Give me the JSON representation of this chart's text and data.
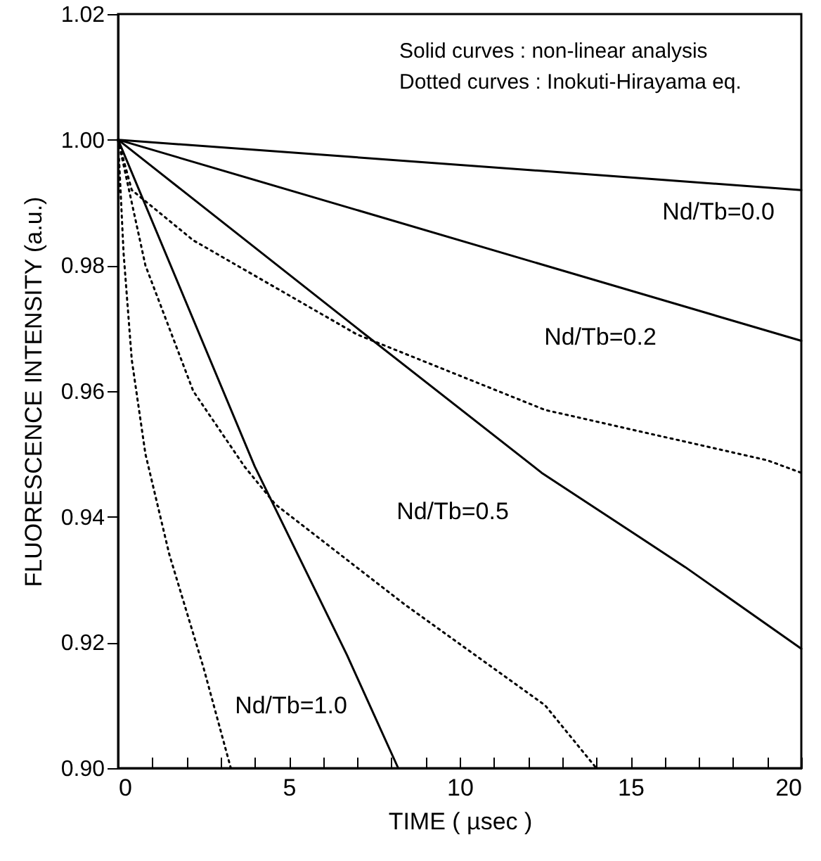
{
  "chart_data": {
    "type": "line",
    "xlabel": "TIME  ( µsec )",
    "ylabel": "FLUORESCENCE  INTENSITY  (a.u.)",
    "xlim": [
      0,
      20
    ],
    "ylim": [
      0.9,
      1.02
    ],
    "xticks": [
      0,
      {
        "value": 1,
        "label": null
      },
      {
        "value": 2,
        "label": null
      },
      {
        "value": 3,
        "label": null
      },
      {
        "value": 4,
        "label": null
      },
      5,
      {
        "value": 6,
        "label": null
      },
      {
        "value": 7,
        "label": null
      },
      {
        "value": 8,
        "label": null
      },
      {
        "value": 9,
        "label": null
      },
      10,
      {
        "value": 11,
        "label": null
      },
      {
        "value": 12,
        "label": null
      },
      {
        "value": 13,
        "label": null
      },
      {
        "value": 14,
        "label": null
      },
      15,
      {
        "value": 16,
        "label": null
      },
      {
        "value": 17,
        "label": null
      },
      {
        "value": 18,
        "label": null
      },
      {
        "value": 19,
        "label": null
      },
      20
    ],
    "yticks": [
      {
        "value": 0.9,
        "label": "0.90"
      },
      {
        "value": 0.92,
        "label": "0.92"
      },
      {
        "value": 0.94,
        "label": "0.94"
      },
      {
        "value": 0.96,
        "label": "0.96"
      },
      {
        "value": 0.98,
        "label": "0.98"
      },
      {
        "value": 1.0,
        "label": "1.00"
      },
      {
        "value": 1.02,
        "label": "1.02"
      }
    ],
    "grid": false,
    "marker": "none",
    "series": [
      {
        "color": "#000000",
        "line_style": "solid",
        "x": [
          0,
          20
        ],
        "values": [
          1.0,
          0.992
        ]
      },
      {
        "color": "#000000",
        "line_style": "solid",
        "x": [
          0,
          20
        ],
        "values": [
          1.0,
          0.968
        ]
      },
      {
        "color": "#000000",
        "line_style": "solid",
        "x": [
          0,
          7,
          12.4,
          16.6,
          20
        ],
        "values": [
          1.0,
          0.97,
          0.947,
          0.932,
          0.919
        ]
      },
      {
        "color": "#000000",
        "line_style": "solid",
        "x": [
          0,
          4.0,
          6.7,
          8.2
        ],
        "values": [
          1.0,
          0.948,
          0.918,
          0.9
        ]
      },
      {
        "color": "#000000",
        "line_style": "dotted",
        "x": [
          0,
          0.4,
          2.2,
          7.0,
          12.5,
          19.0,
          20
        ],
        "values": [
          1.0,
          0.992,
          0.984,
          0.969,
          0.957,
          0.949,
          0.947
        ]
      },
      {
        "color": "#000000",
        "line_style": "dotted",
        "x": [
          0,
          0.8,
          2.2,
          3.7,
          4.6,
          8.4,
          12.5,
          14.0
        ],
        "values": [
          1.0,
          0.98,
          0.96,
          0.948,
          0.942,
          0.926,
          0.91,
          0.9
        ]
      },
      {
        "color": "#000000",
        "line_style": "dotted",
        "x": [
          0,
          0.16,
          0.4,
          0.8,
          1.5,
          2.5,
          3.3
        ],
        "values": [
          1.0,
          0.982,
          0.965,
          0.95,
          0.934,
          0.916,
          0.9
        ]
      }
    ],
    "annotations": [
      "Solid curves  :  non-linear analysis",
      "Dotted curves : Inokuti-Hirayama eq.",
      "Nd/Tb=0.0",
      "Nd/Tb=0.2",
      "Nd/Tb=0.5",
      "Nd/Tb=1.0"
    ]
  }
}
